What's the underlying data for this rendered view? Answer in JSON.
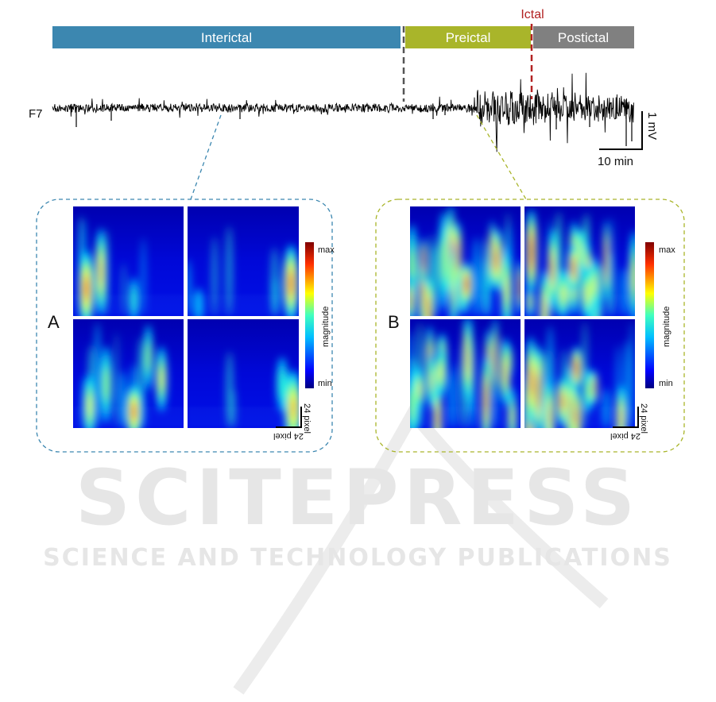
{
  "phases": {
    "interictal": "Interictal",
    "preictal": "Preictal",
    "ictal": "Ictal",
    "postictal": "Postictal"
  },
  "colors": {
    "interictal": "#3c87b0",
    "preictal": "#a9b52a",
    "postictal": "#808080",
    "ictal_marker": "#b22222",
    "phase_divider": "#555555"
  },
  "eeg": {
    "channel": "F7",
    "scale_voltage": "1 mV",
    "scale_time": "10 min"
  },
  "panels": {
    "a": {
      "letter": "A",
      "colorbar_max": "max",
      "colorbar_title": "magnitude",
      "colorbar_min": "min",
      "pixel_scale": "24 pixel"
    },
    "b": {
      "letter": "B",
      "colorbar_max": "max",
      "colorbar_title": "magnitude",
      "colorbar_min": "min",
      "pixel_scale": "24 pixel"
    }
  },
  "watermark": {
    "title": "SCITEPRESS",
    "subtitle": "SCIENCE AND TECHNOLOGY PUBLICATIONS"
  }
}
